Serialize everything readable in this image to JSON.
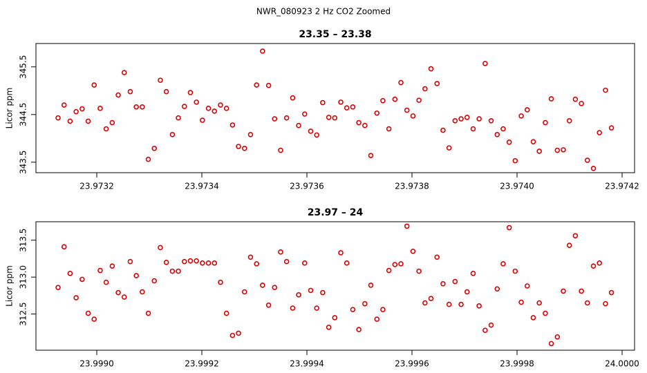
{
  "title": "NWR_080923  2 Hz CO2 Zoomed",
  "chart_data": [
    {
      "type": "scatter",
      "title": "23.35 – 23.38",
      "ylabel": "Licor ppm",
      "color": "#dd0000",
      "marker": "open-circle",
      "xlim": [
        23.9730842,
        23.9742237
      ],
      "ylim": [
        343.28,
        345.99
      ],
      "xticks": [
        23.9732,
        23.9734,
        23.9736,
        23.9738,
        {
          "value": 23.974,
          "label": "23.9740"
        },
        23.9742
      ],
      "yticks": [
        343.5,
        344.5,
        345.5
      ],
      "x": [
        23.9731263,
        23.9731378,
        23.9731492,
        23.9731607,
        23.9731721,
        23.9731836,
        23.973195,
        23.9732065,
        23.9732179,
        23.9732294,
        23.9732408,
        23.9732523,
        23.9732637,
        23.9732752,
        23.9732866,
        23.9732981,
        23.9733095,
        23.973321,
        23.9733324,
        23.9733439,
        23.9733553,
        23.9733668,
        23.9733782,
        23.9733897,
        23.9734011,
        23.9734126,
        23.973424,
        23.9734355,
        23.9734469,
        23.9734584,
        23.9734698,
        23.9734813,
        23.9734927,
        23.9735042,
        23.9735156,
        23.9735271,
        23.9735385,
        23.97355,
        23.9735614,
        23.9735729,
        23.9735843,
        23.9735958,
        23.9736072,
        23.9736187,
        23.9736301,
        23.9736416,
        23.973653,
        23.9736645,
        23.9736759,
        23.9736874,
        23.9736988,
        23.9737103,
        23.9737217,
        23.9737332,
        23.9737446,
        23.9737561,
        23.9737675,
        23.973779,
        23.9737904,
        23.9738019,
        23.9738133,
        23.9738248,
        23.9738362,
        23.9738477,
        23.9738591,
        23.9738706,
        23.973882,
        23.9738935,
        23.9739049,
        23.9739164,
        23.9739278,
        23.9739393,
        23.9739507,
        23.9739622,
        23.9739736,
        23.9739851,
        23.9739965,
        23.974008,
        23.9740194,
        23.9740309,
        23.9740423,
        23.9740538,
        23.9740652,
        23.9740767,
        23.9740881,
        23.9740996,
        23.974111,
        23.9741225,
        23.9741339,
        23.9741454,
        23.9741568,
        23.9741683,
        23.9741797
      ],
      "values": [
        344.43,
        344.7,
        344.36,
        344.56,
        344.62,
        344.36,
        345.12,
        344.63,
        344.2,
        344.33,
        344.91,
        345.38,
        344.98,
        344.66,
        344.66,
        343.56,
        343.79,
        345.22,
        344.98,
        344.08,
        344.43,
        344.67,
        344.96,
        344.76,
        344.38,
        344.63,
        344.57,
        344.7,
        344.63,
        344.28,
        343.83,
        343.79,
        344.08,
        345.12,
        345.83,
        345.11,
        344.41,
        343.75,
        344.43,
        344.85,
        344.27,
        344.51,
        344.15,
        344.07,
        344.75,
        344.44,
        344.43,
        344.76,
        344.64,
        344.66,
        344.33,
        344.27,
        343.64,
        344.53,
        344.79,
        344.2,
        344.82,
        345.17,
        344.59,
        344.47,
        344.8,
        345.04,
        345.46,
        345.15,
        344.17,
        343.8,
        344.37,
        344.41,
        344.44,
        344.2,
        344.41,
        345.57,
        344.37,
        344.08,
        344.2,
        343.92,
        343.53,
        344.47,
        344.6,
        343.93,
        343.73,
        344.33,
        344.83,
        343.75,
        343.76,
        344.37,
        344.82,
        344.73,
        343.54,
        343.37,
        344.12,
        345.01,
        344.22
      ]
    },
    {
      "type": "scatter",
      "title": "23.97 – 24",
      "ylabel": "Licor ppm",
      "color": "#dd0000",
      "marker": "open-circle",
      "xlim": [
        23.9988842,
        24.0000237
      ],
      "ylim": [
        312.01,
        313.75
      ],
      "xticks": [
        {
          "value": 23.999,
          "label": "23.9990"
        },
        23.9992,
        23.9994,
        23.9996,
        23.9998,
        {
          "value": 24,
          "label": "24.0000"
        }
      ],
      "yticks": [
        312.5,
        {
          "value": 313,
          "label": "313.0"
        },
        313.5
      ],
      "x": [
        23.9989263,
        23.9989378,
        23.9989492,
        23.9989607,
        23.9989721,
        23.9989836,
        23.998995,
        23.9990065,
        23.9990179,
        23.9990294,
        23.9990408,
        23.9990523,
        23.9990637,
        23.9990752,
        23.9990866,
        23.9990981,
        23.9991095,
        23.999121,
        23.9991324,
        23.9991439,
        23.9991553,
        23.9991668,
        23.9991782,
        23.9991897,
        23.9992011,
        23.9992126,
        23.999224,
        23.9992355,
        23.9992469,
        23.9992584,
        23.9992698,
        23.9992813,
        23.9992927,
        23.9993042,
        23.9993156,
        23.9993271,
        23.9993385,
        23.99935,
        23.9993614,
        23.9993729,
        23.9993843,
        23.9993958,
        23.9994072,
        23.9994187,
        23.9994301,
        23.9994416,
        23.999453,
        23.9994645,
        23.9994759,
        23.9994874,
        23.9994988,
        23.9995103,
        23.9995217,
        23.9995332,
        23.9995446,
        23.9995561,
        23.9995675,
        23.999579,
        23.9995904,
        23.9996019,
        23.9996133,
        23.9996248,
        23.9996362,
        23.9996477,
        23.9996591,
        23.9996706,
        23.999682,
        23.9996935,
        23.9997049,
        23.9997164,
        23.9997278,
        23.9997393,
        23.9997507,
        23.9997622,
        23.9997736,
        23.9997851,
        23.9997965,
        23.999808,
        23.9998194,
        23.9998309,
        23.9998423,
        23.9998538,
        23.9998652,
        23.9998767,
        23.9998881,
        23.9998996,
        23.999911,
        23.9999225,
        23.9999339,
        23.9999454,
        23.9999568,
        23.9999683,
        23.9999797
      ],
      "values": [
        312.86,
        313.41,
        313.05,
        312.72,
        312.97,
        312.51,
        312.43,
        313.09,
        312.93,
        313.15,
        312.79,
        312.73,
        313.21,
        313.02,
        312.8,
        312.51,
        312.95,
        313.4,
        313.2,
        313.08,
        313.08,
        313.21,
        313.22,
        313.22,
        313.19,
        313.19,
        313.19,
        312.93,
        312.51,
        312.21,
        312.24,
        312.8,
        313.27,
        313.18,
        312.89,
        312.62,
        312.86,
        313.34,
        313.21,
        312.58,
        312.76,
        313.19,
        312.82,
        312.58,
        312.79,
        312.32,
        312.45,
        313.33,
        313.19,
        312.56,
        312.29,
        312.64,
        312.89,
        312.43,
        312.56,
        313.09,
        313.17,
        313.18,
        313.69,
        313.35,
        313.08,
        312.65,
        312.71,
        313.27,
        312.91,
        312.63,
        312.94,
        312.63,
        312.8,
        313.05,
        312.61,
        312.28,
        312.35,
        312.84,
        313.18,
        313.67,
        313.08,
        312.66,
        312.88,
        312.45,
        312.65,
        312.51,
        312.1,
        312.19,
        312.81,
        313.43,
        313.56,
        312.81,
        312.65,
        313.15,
        313.19,
        312.64,
        312.79
      ]
    }
  ]
}
